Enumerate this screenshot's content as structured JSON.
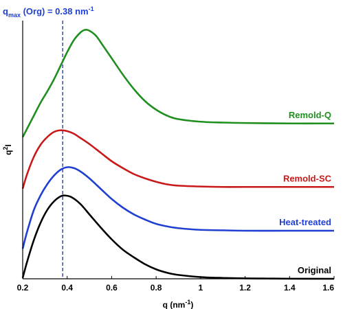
{
  "chart_data": {
    "type": "line",
    "title": "",
    "xlabel": "q (nm",
    "xlabel_sup": "-1",
    "xlabel_end": ")",
    "ylabel": "q",
    "ylabel_sup": "2",
    "ylabel_end": "I",
    "xlim": [
      0.2,
      1.6
    ],
    "xticks": [
      0.2,
      0.4,
      0.6,
      0.8,
      1.0,
      1.2,
      1.4,
      1.6
    ],
    "xtick_labels": [
      "0.2",
      "0.4",
      "0.6",
      "0.8",
      "1",
      "1.2",
      "1.4",
      "1.6"
    ],
    "y_ticks_shown": false,
    "grid": false,
    "legend": "series labels placed at right end of each curve",
    "annotation": {
      "label_main": "q",
      "label_sub": "max",
      "label_rest": " (Org) = 0.38 nm",
      "label_sup": "-1",
      "x": 0.38,
      "line_style": "dashed",
      "color": "#1f3fd0"
    },
    "series": [
      {
        "name": "Original",
        "color": "#000000",
        "points": [
          [
            0.2,
            0.01
          ],
          [
            0.22,
            0.2
          ],
          [
            0.25,
            0.45
          ],
          [
            0.28,
            0.65
          ],
          [
            0.31,
            0.8
          ],
          [
            0.34,
            0.9
          ],
          [
            0.37,
            0.96
          ],
          [
            0.39,
            0.97
          ],
          [
            0.42,
            0.95
          ],
          [
            0.46,
            0.87
          ],
          [
            0.5,
            0.75
          ],
          [
            0.55,
            0.6
          ],
          [
            0.6,
            0.46
          ],
          [
            0.65,
            0.34
          ],
          [
            0.7,
            0.25
          ],
          [
            0.75,
            0.17
          ],
          [
            0.8,
            0.11
          ],
          [
            0.85,
            0.07
          ],
          [
            0.9,
            0.045
          ],
          [
            1.0,
            0.02
          ],
          [
            1.1,
            0.01
          ],
          [
            1.2,
            0.005
          ],
          [
            1.3,
            0.003
          ],
          [
            1.4,
            0.001
          ],
          [
            1.6,
            0.0
          ]
        ]
      },
      {
        "name": "Heat-treated",
        "color": "#1f3fd0",
        "points": [
          [
            0.2,
            0.35
          ],
          [
            0.22,
            0.55
          ],
          [
            0.25,
            0.8
          ],
          [
            0.28,
            0.97
          ],
          [
            0.31,
            1.1
          ],
          [
            0.34,
            1.2
          ],
          [
            0.37,
            1.27
          ],
          [
            0.4,
            1.3
          ],
          [
            0.43,
            1.29
          ],
          [
            0.46,
            1.25
          ],
          [
            0.5,
            1.17
          ],
          [
            0.55,
            1.05
          ],
          [
            0.6,
            0.93
          ],
          [
            0.65,
            0.83
          ],
          [
            0.7,
            0.75
          ],
          [
            0.75,
            0.69
          ],
          [
            0.8,
            0.64
          ],
          [
            0.85,
            0.61
          ],
          [
            0.9,
            0.59
          ],
          [
            1.0,
            0.57
          ],
          [
            1.1,
            0.565
          ],
          [
            1.2,
            0.56
          ],
          [
            1.4,
            0.56
          ],
          [
            1.6,
            0.56
          ]
        ]
      },
      {
        "name": "Remold-SC",
        "color": "#c81818",
        "points": [
          [
            0.2,
            1.05
          ],
          [
            0.22,
            1.22
          ],
          [
            0.25,
            1.42
          ],
          [
            0.28,
            1.56
          ],
          [
            0.31,
            1.65
          ],
          [
            0.34,
            1.71
          ],
          [
            0.37,
            1.73
          ],
          [
            0.4,
            1.72
          ],
          [
            0.43,
            1.69
          ],
          [
            0.46,
            1.64
          ],
          [
            0.5,
            1.57
          ],
          [
            0.55,
            1.47
          ],
          [
            0.6,
            1.37
          ],
          [
            0.65,
            1.29
          ],
          [
            0.7,
            1.22
          ],
          [
            0.75,
            1.17
          ],
          [
            0.8,
            1.13
          ],
          [
            0.85,
            1.1
          ],
          [
            0.9,
            1.085
          ],
          [
            1.0,
            1.075
          ],
          [
            1.1,
            1.07
          ],
          [
            1.2,
            1.07
          ],
          [
            1.4,
            1.07
          ],
          [
            1.6,
            1.07
          ]
        ]
      },
      {
        "name": "Remold-Q",
        "color": "#1f8f1f",
        "points": [
          [
            0.2,
            1.65
          ],
          [
            0.22,
            1.75
          ],
          [
            0.25,
            1.9
          ],
          [
            0.28,
            2.05
          ],
          [
            0.31,
            2.18
          ],
          [
            0.34,
            2.32
          ],
          [
            0.37,
            2.48
          ],
          [
            0.4,
            2.64
          ],
          [
            0.43,
            2.78
          ],
          [
            0.46,
            2.87
          ],
          [
            0.48,
            2.9
          ],
          [
            0.5,
            2.89
          ],
          [
            0.53,
            2.83
          ],
          [
            0.56,
            2.72
          ],
          [
            0.6,
            2.57
          ],
          [
            0.65,
            2.38
          ],
          [
            0.7,
            2.21
          ],
          [
            0.75,
            2.07
          ],
          [
            0.8,
            1.97
          ],
          [
            0.85,
            1.9
          ],
          [
            0.9,
            1.86
          ],
          [
            1.0,
            1.83
          ],
          [
            1.1,
            1.82
          ],
          [
            1.2,
            1.815
          ],
          [
            1.4,
            1.81
          ],
          [
            1.6,
            1.81
          ]
        ]
      }
    ]
  }
}
